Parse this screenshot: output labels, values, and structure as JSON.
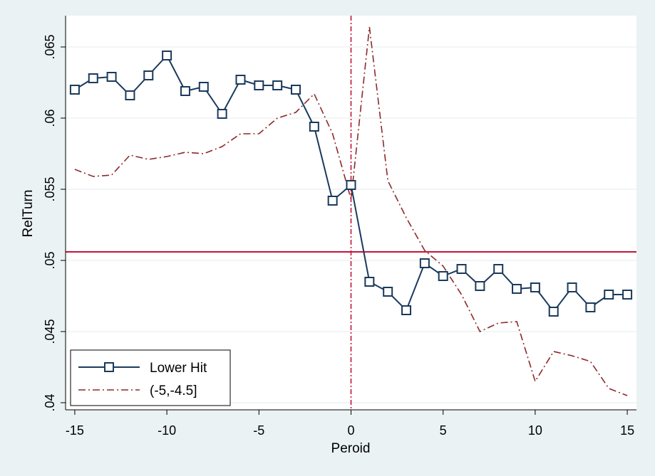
{
  "chart_data": {
    "type": "line",
    "title": "",
    "xlabel": "Peroid",
    "ylabel": "RelTurn",
    "xlim": [
      -15.5,
      15.5
    ],
    "ylim": [
      0.0395,
      0.0672
    ],
    "x_ticks": [
      -15,
      -10,
      -5,
      0,
      5,
      10,
      15
    ],
    "x_tick_labels": [
      "-15",
      "-10",
      "-5",
      "0",
      "5",
      "10",
      "15"
    ],
    "y_ticks": [
      0.04,
      0.045,
      0.05,
      0.055,
      0.06,
      0.065
    ],
    "y_tick_labels": [
      ".04",
      ".045",
      ".05",
      ".055",
      ".06",
      ".065"
    ],
    "grid": "horizontal",
    "reference_lines": {
      "horizontal_y": 0.0506,
      "vertical_x": 0
    },
    "legend_position": "bottom-left",
    "x": [
      -15,
      -14,
      -13,
      -12,
      -11,
      -10,
      -9,
      -8,
      -7,
      -6,
      -5,
      -4,
      -3,
      -2,
      -1,
      0,
      1,
      2,
      3,
      4,
      5,
      6,
      7,
      8,
      9,
      10,
      11,
      12,
      13,
      14,
      15
    ],
    "series": [
      {
        "name": "Lower Hit",
        "style": "solid-square-markers",
        "color": "#1a3a5c",
        "values": [
          0.062,
          0.0628,
          0.0629,
          0.0616,
          0.063,
          0.0644,
          0.0619,
          0.0622,
          0.0603,
          0.0627,
          0.0623,
          0.0623,
          0.062,
          0.0594,
          0.0542,
          0.0553,
          0.0485,
          0.0478,
          0.0465,
          0.0498,
          0.0489,
          0.0494,
          0.0482,
          0.0494,
          0.048,
          0.0481,
          0.0464,
          0.0481,
          0.0467,
          0.0476,
          0.0476
        ]
      },
      {
        "name": "(-5,-4.5]",
        "style": "dash-dot",
        "color": "#8c2a2a",
        "values": [
          0.0564,
          0.0559,
          0.056,
          0.0574,
          0.0571,
          0.0573,
          0.0576,
          0.0575,
          0.058,
          0.0589,
          0.0589,
          0.06,
          0.0604,
          0.0617,
          0.0589,
          0.0543,
          0.0664,
          0.0556,
          0.053,
          0.0507,
          0.0496,
          0.0476,
          0.045,
          0.0456,
          0.0457,
          0.0415,
          0.0436,
          0.0433,
          0.0429,
          0.041,
          0.0405
        ]
      }
    ]
  },
  "colors": {
    "background": "#eaf2f3",
    "plot_area": "#ffffff",
    "grid": "#e4ebed",
    "reference_line": "#c0163a"
  }
}
